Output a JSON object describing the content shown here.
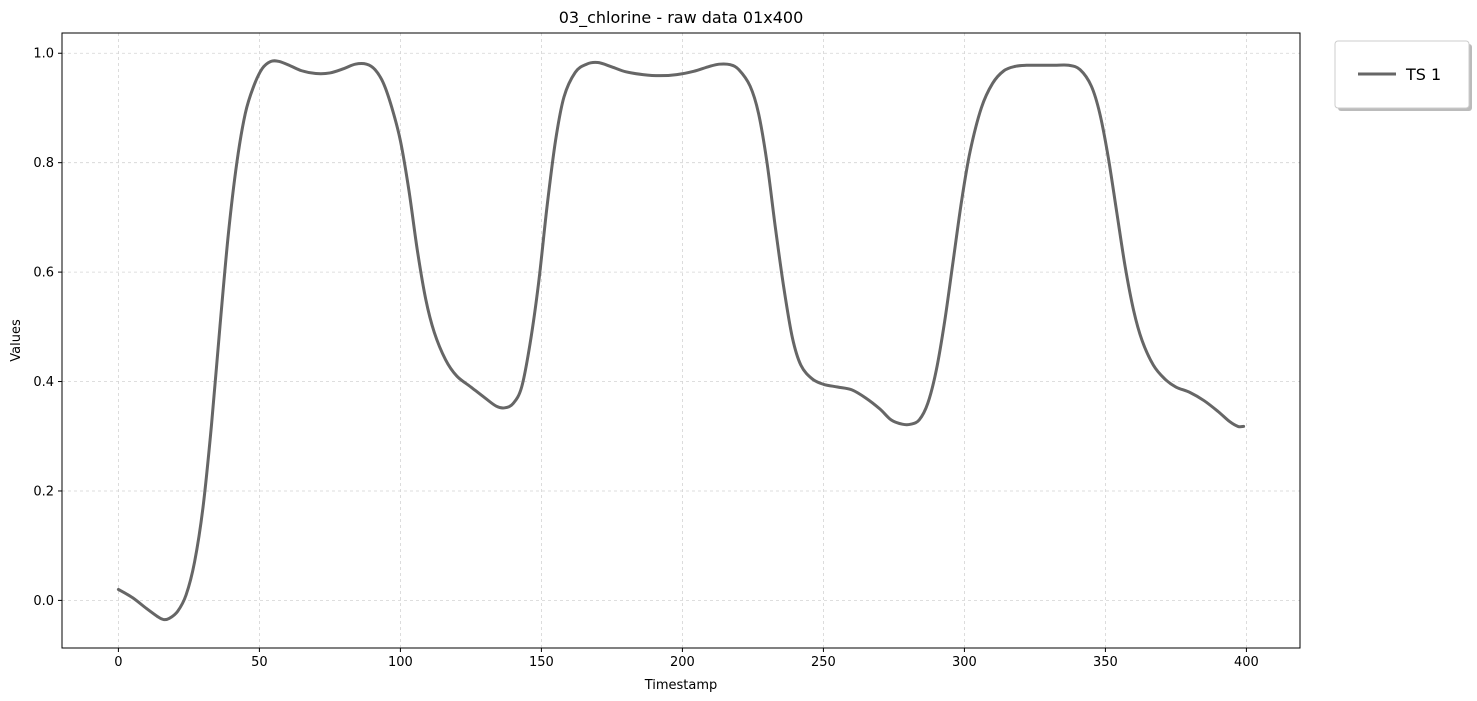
{
  "chart_data": {
    "type": "line",
    "title": "03_chlorine - raw data 01x400",
    "xlabel": "Timestamp",
    "ylabel": "Values",
    "xlim": [
      -20,
      419
    ],
    "ylim": [
      -0.087,
      1.037
    ],
    "xticks": [
      0,
      50,
      100,
      150,
      200,
      250,
      300,
      350,
      400
    ],
    "yticks": [
      0.0,
      0.2,
      0.4,
      0.6,
      0.8,
      1.0
    ],
    "xtick_labels": [
      "0",
      "50",
      "100",
      "150",
      "200",
      "250",
      "300",
      "350",
      "400"
    ],
    "ytick_labels": [
      "0.0",
      "0.2",
      "0.4",
      "0.6",
      "0.8",
      "1.0"
    ],
    "grid": true,
    "legend_position": "outside-top-right",
    "series": [
      {
        "name": "TS 1",
        "color": "#666666",
        "points": [
          [
            0,
            0.02
          ],
          [
            5,
            0.005
          ],
          [
            10,
            -0.015
          ],
          [
            14,
            -0.03
          ],
          [
            16,
            -0.035
          ],
          [
            18,
            -0.033
          ],
          [
            21,
            -0.02
          ],
          [
            24,
            0.01
          ],
          [
            27,
            0.07
          ],
          [
            30,
            0.17
          ],
          [
            33,
            0.32
          ],
          [
            36,
            0.5
          ],
          [
            39,
            0.67
          ],
          [
            42,
            0.8
          ],
          [
            45,
            0.89
          ],
          [
            48,
            0.94
          ],
          [
            51,
            0.972
          ],
          [
            54,
            0.985
          ],
          [
            57,
            0.985
          ],
          [
            61,
            0.977
          ],
          [
            65,
            0.968
          ],
          [
            70,
            0.963
          ],
          [
            75,
            0.964
          ],
          [
            80,
            0.972
          ],
          [
            84,
            0.98
          ],
          [
            88,
            0.98
          ],
          [
            91,
            0.97
          ],
          [
            94,
            0.945
          ],
          [
            97,
            0.9
          ],
          [
            100,
            0.84
          ],
          [
            103,
            0.75
          ],
          [
            106,
            0.64
          ],
          [
            109,
            0.55
          ],
          [
            112,
            0.49
          ],
          [
            116,
            0.44
          ],
          [
            120,
            0.41
          ],
          [
            125,
            0.39
          ],
          [
            130,
            0.37
          ],
          [
            134,
            0.355
          ],
          [
            137,
            0.352
          ],
          [
            140,
            0.36
          ],
          [
            143,
            0.39
          ],
          [
            146,
            0.47
          ],
          [
            149,
            0.58
          ],
          [
            152,
            0.72
          ],
          [
            155,
            0.84
          ],
          [
            158,
            0.92
          ],
          [
            162,
            0.965
          ],
          [
            166,
            0.98
          ],
          [
            170,
            0.983
          ],
          [
            175,
            0.975
          ],
          [
            180,
            0.966
          ],
          [
            186,
            0.961
          ],
          [
            192,
            0.959
          ],
          [
            198,
            0.961
          ],
          [
            204,
            0.967
          ],
          [
            209,
            0.975
          ],
          [
            213,
            0.98
          ],
          [
            217,
            0.979
          ],
          [
            220,
            0.97
          ],
          [
            224,
            0.94
          ],
          [
            227,
            0.89
          ],
          [
            230,
            0.8
          ],
          [
            233,
            0.68
          ],
          [
            236,
            0.57
          ],
          [
            239,
            0.48
          ],
          [
            242,
            0.43
          ],
          [
            246,
            0.405
          ],
          [
            250,
            0.395
          ],
          [
            255,
            0.39
          ],
          [
            260,
            0.385
          ],
          [
            265,
            0.37
          ],
          [
            270,
            0.35
          ],
          [
            274,
            0.33
          ],
          [
            278,
            0.322
          ],
          [
            281,
            0.322
          ],
          [
            284,
            0.33
          ],
          [
            287,
            0.36
          ],
          [
            290,
            0.42
          ],
          [
            293,
            0.51
          ],
          [
            296,
            0.62
          ],
          [
            299,
            0.73
          ],
          [
            302,
            0.82
          ],
          [
            306,
            0.9
          ],
          [
            310,
            0.945
          ],
          [
            314,
            0.968
          ],
          [
            318,
            0.976
          ],
          [
            322,
            0.978
          ],
          [
            327,
            0.978
          ],
          [
            332,
            0.978
          ],
          [
            337,
            0.978
          ],
          [
            341,
            0.97
          ],
          [
            345,
            0.94
          ],
          [
            348,
            0.89
          ],
          [
            351,
            0.81
          ],
          [
            354,
            0.71
          ],
          [
            357,
            0.61
          ],
          [
            360,
            0.53
          ],
          [
            363,
            0.475
          ],
          [
            367,
            0.43
          ],
          [
            371,
            0.405
          ],
          [
            375,
            0.39
          ],
          [
            380,
            0.38
          ],
          [
            385,
            0.365
          ],
          [
            390,
            0.345
          ],
          [
            394,
            0.327
          ],
          [
            397,
            0.318
          ],
          [
            399,
            0.318
          ]
        ]
      }
    ]
  }
}
